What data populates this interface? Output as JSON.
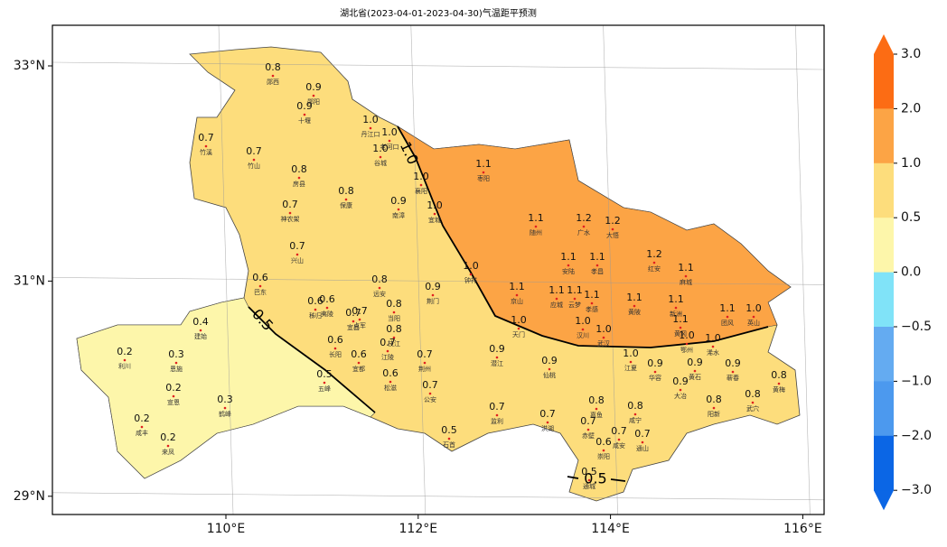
{
  "map": {
    "title": "湖北省(2023-04-01-2023-04-30)气温距平预测",
    "lon_ticks": [
      {
        "value": 110,
        "label": "110°E"
      },
      {
        "value": 112,
        "label": "112°E"
      },
      {
        "value": 114,
        "label": "114°E"
      },
      {
        "value": 116,
        "label": "116°E"
      }
    ],
    "lat_ticks": [
      {
        "value": 33,
        "label": "33°N"
      },
      {
        "value": 31,
        "label": "31°N"
      },
      {
        "value": 29,
        "label": "29°N"
      }
    ],
    "colorbar": {
      "ticks": [
        {
          "value": 3,
          "label": "3.0"
        },
        {
          "value": 2,
          "label": "2.0"
        },
        {
          "value": 1,
          "label": "1.0"
        },
        {
          "value": 0.5,
          "label": "0.5"
        },
        {
          "value": 0,
          "label": "0.0"
        },
        {
          "value": -0.5,
          "label": "−0.5"
        },
        {
          "value": -1,
          "label": "−1.0"
        },
        {
          "value": -2,
          "label": "−2.0"
        },
        {
          "value": -3,
          "label": "−3.0"
        }
      ],
      "colors": [
        "#fc6c14",
        "#fca445",
        "#fddd7c",
        "#fdf6aa",
        "#80e3f8",
        "#64abf1",
        "#4c99ee",
        "#0b66e5"
      ]
    },
    "contours": [
      {
        "label": "1.0"
      },
      {
        "label": "0.5"
      }
    ],
    "stations": [
      {
        "name": "郧西",
        "value": "0.8"
      },
      {
        "name": "郧阳",
        "value": "0.9"
      },
      {
        "name": "十堰",
        "value": "0.9"
      },
      {
        "name": "丹江口",
        "value": "1.0"
      },
      {
        "name": "老河口",
        "value": "1.0"
      },
      {
        "name": "谷城",
        "value": "1.0"
      },
      {
        "name": "竹溪",
        "value": "0.7"
      },
      {
        "name": "竹山",
        "value": "0.7"
      },
      {
        "name": "房县",
        "value": "0.8"
      },
      {
        "name": "保康",
        "value": "0.8"
      },
      {
        "name": "南漳",
        "value": "0.9"
      },
      {
        "name": "襄阳",
        "value": "1.0"
      },
      {
        "name": "宜城",
        "value": "1.0"
      },
      {
        "name": "枣阳",
        "value": "1.1"
      },
      {
        "name": "随州",
        "value": "1.1"
      },
      {
        "name": "广水",
        "value": "1.2"
      },
      {
        "name": "大悟",
        "value": "1.2"
      },
      {
        "name": "红安",
        "value": "1.2"
      },
      {
        "name": "麻城",
        "value": "1.1"
      },
      {
        "name": "神农架",
        "value": "0.7"
      },
      {
        "name": "兴山",
        "value": "0.7"
      },
      {
        "name": "巴东",
        "value": "0.6"
      },
      {
        "name": "远安",
        "value": "0.8"
      },
      {
        "name": "荆门",
        "value": "0.9"
      },
      {
        "name": "钟祥",
        "value": "1.0"
      },
      {
        "name": "京山",
        "value": "1.1"
      },
      {
        "name": "安陆",
        "value": "1.1"
      },
      {
        "name": "孝昌",
        "value": "1.1"
      },
      {
        "name": "应城",
        "value": "1.1"
      },
      {
        "name": "云梦",
        "value": "1.1"
      },
      {
        "name": "孝感",
        "value": "1.1"
      },
      {
        "name": "黄陂",
        "value": "1.1"
      },
      {
        "name": "新洲",
        "value": "1.1"
      },
      {
        "name": "团风",
        "value": "1.1"
      },
      {
        "name": "英山",
        "value": "1.0"
      },
      {
        "name": "天门",
        "value": "1.0"
      },
      {
        "name": "汉川",
        "value": "1.0"
      },
      {
        "name": "武汉",
        "value": "1.0"
      },
      {
        "name": "黄冈",
        "value": "1.1"
      },
      {
        "name": "鄂州",
        "value": "1.0"
      },
      {
        "name": "浠水",
        "value": "1.0"
      },
      {
        "name": "秭归",
        "value": "0.6"
      },
      {
        "name": "夷陵",
        "value": "0.6"
      },
      {
        "name": "宜昌",
        "value": "0.7"
      },
      {
        "name": "点军",
        "value": "0.7"
      },
      {
        "name": "当阳",
        "value": "0.8"
      },
      {
        "name": "枝江",
        "value": "0.8"
      },
      {
        "name": "建始",
        "value": "0.4"
      },
      {
        "name": "利川",
        "value": "0.2"
      },
      {
        "name": "恩施",
        "value": "0.3"
      },
      {
        "name": "宣恩",
        "value": "0.2"
      },
      {
        "name": "鹤峰",
        "value": "0.3"
      },
      {
        "name": "咸丰",
        "value": "0.2"
      },
      {
        "name": "来凤",
        "value": "0.2"
      },
      {
        "name": "长阳",
        "value": "0.6"
      },
      {
        "name": "宜都",
        "value": "0.6"
      },
      {
        "name": "江陵",
        "value": "0.7"
      },
      {
        "name": "松滋",
        "value": "0.6"
      },
      {
        "name": "荆州",
        "value": "0.7"
      },
      {
        "name": "五峰",
        "value": "0.5"
      },
      {
        "name": "公安",
        "value": "0.7"
      },
      {
        "name": "潜江",
        "value": "0.9"
      },
      {
        "name": "仙桃",
        "value": "0.9"
      },
      {
        "name": "江夏",
        "value": "1.0"
      },
      {
        "name": "华容",
        "value": "0.9"
      },
      {
        "name": "黄石",
        "value": "0.9"
      },
      {
        "name": "蕲春",
        "value": "0.9"
      },
      {
        "name": "黄梅",
        "value": "0.8"
      },
      {
        "name": "大冶",
        "value": "0.9"
      },
      {
        "name": "武穴",
        "value": "0.8"
      },
      {
        "name": "阳新",
        "value": "0.8"
      },
      {
        "name": "监利",
        "value": "0.7"
      },
      {
        "name": "洪湖",
        "value": "0.7"
      },
      {
        "name": "石首",
        "value": "0.5"
      },
      {
        "name": "嘉鱼",
        "value": "0.8"
      },
      {
        "name": "咸宁",
        "value": "0.8"
      },
      {
        "name": "赤壁",
        "value": "0.7"
      },
      {
        "name": "咸安",
        "value": "0.7"
      },
      {
        "name": "通山",
        "value": "0.7"
      },
      {
        "name": "崇阳",
        "value": "0.6"
      },
      {
        "name": "通城",
        "value": "0.5"
      }
    ]
  }
}
